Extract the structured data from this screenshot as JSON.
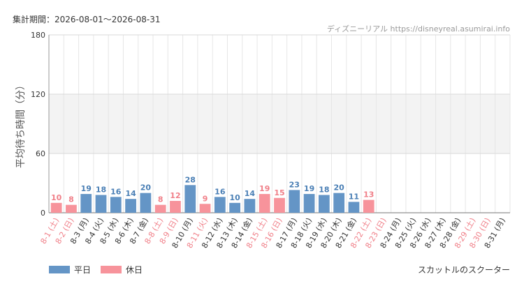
{
  "header": {
    "period": "集計期間：2026-08-01～2026-08-31",
    "credit": "ディズニーリアル https://disneyreal.asumirai.info"
  },
  "legend": {
    "weekday_label": "平日",
    "holiday_label": "休日"
  },
  "caption": "スカットルのスクーター",
  "colors": {
    "weekday": "#6495c6",
    "holiday": "#f7939b",
    "weekday_text": "#4a7fb5",
    "holiday_text": "#f07f88",
    "band": "#f3f3f3"
  },
  "chart_data": {
    "type": "bar",
    "ylabel": "平均待ち時間（分）",
    "ylim": [
      0,
      180
    ],
    "yticks": [
      0,
      60,
      120,
      180
    ],
    "grid": true,
    "legend_position": "bottom-left",
    "categories": [
      "8-1 (土)",
      "8-2 (日)",
      "8-3 (月)",
      "8-4 (火)",
      "8-5 (水)",
      "8-6 (木)",
      "8-7 (金)",
      "8-8 (土)",
      "8-9 (日)",
      "8-10 (月)",
      "8-11 (火)",
      "8-12 (水)",
      "8-13 (木)",
      "8-14 (金)",
      "8-15 (土)",
      "8-16 (日)",
      "8-17 (月)",
      "8-18 (火)",
      "8-19 (水)",
      "8-20 (木)",
      "8-21 (金)",
      "8-22 (土)",
      "8-23 (日)",
      "8-24 (月)",
      "8-25 (火)",
      "8-26 (水)",
      "8-27 (木)",
      "8-28 (金)",
      "8-29 (土)",
      "8-30 (日)",
      "8-31 (月)"
    ],
    "values": [
      10,
      8,
      19,
      18,
      16,
      14,
      20,
      8,
      12,
      28,
      9,
      16,
      10,
      14,
      19,
      15,
      23,
      19,
      18,
      20,
      11,
      13,
      null,
      null,
      null,
      null,
      null,
      null,
      null,
      null,
      null
    ],
    "holiday": [
      true,
      true,
      false,
      false,
      false,
      false,
      false,
      true,
      true,
      false,
      true,
      false,
      false,
      false,
      true,
      true,
      false,
      false,
      false,
      false,
      false,
      true,
      true,
      false,
      false,
      false,
      false,
      false,
      true,
      true,
      false
    ],
    "series": [
      {
        "name": "平日",
        "type": "weekday"
      },
      {
        "name": "休日",
        "type": "holiday"
      }
    ]
  }
}
